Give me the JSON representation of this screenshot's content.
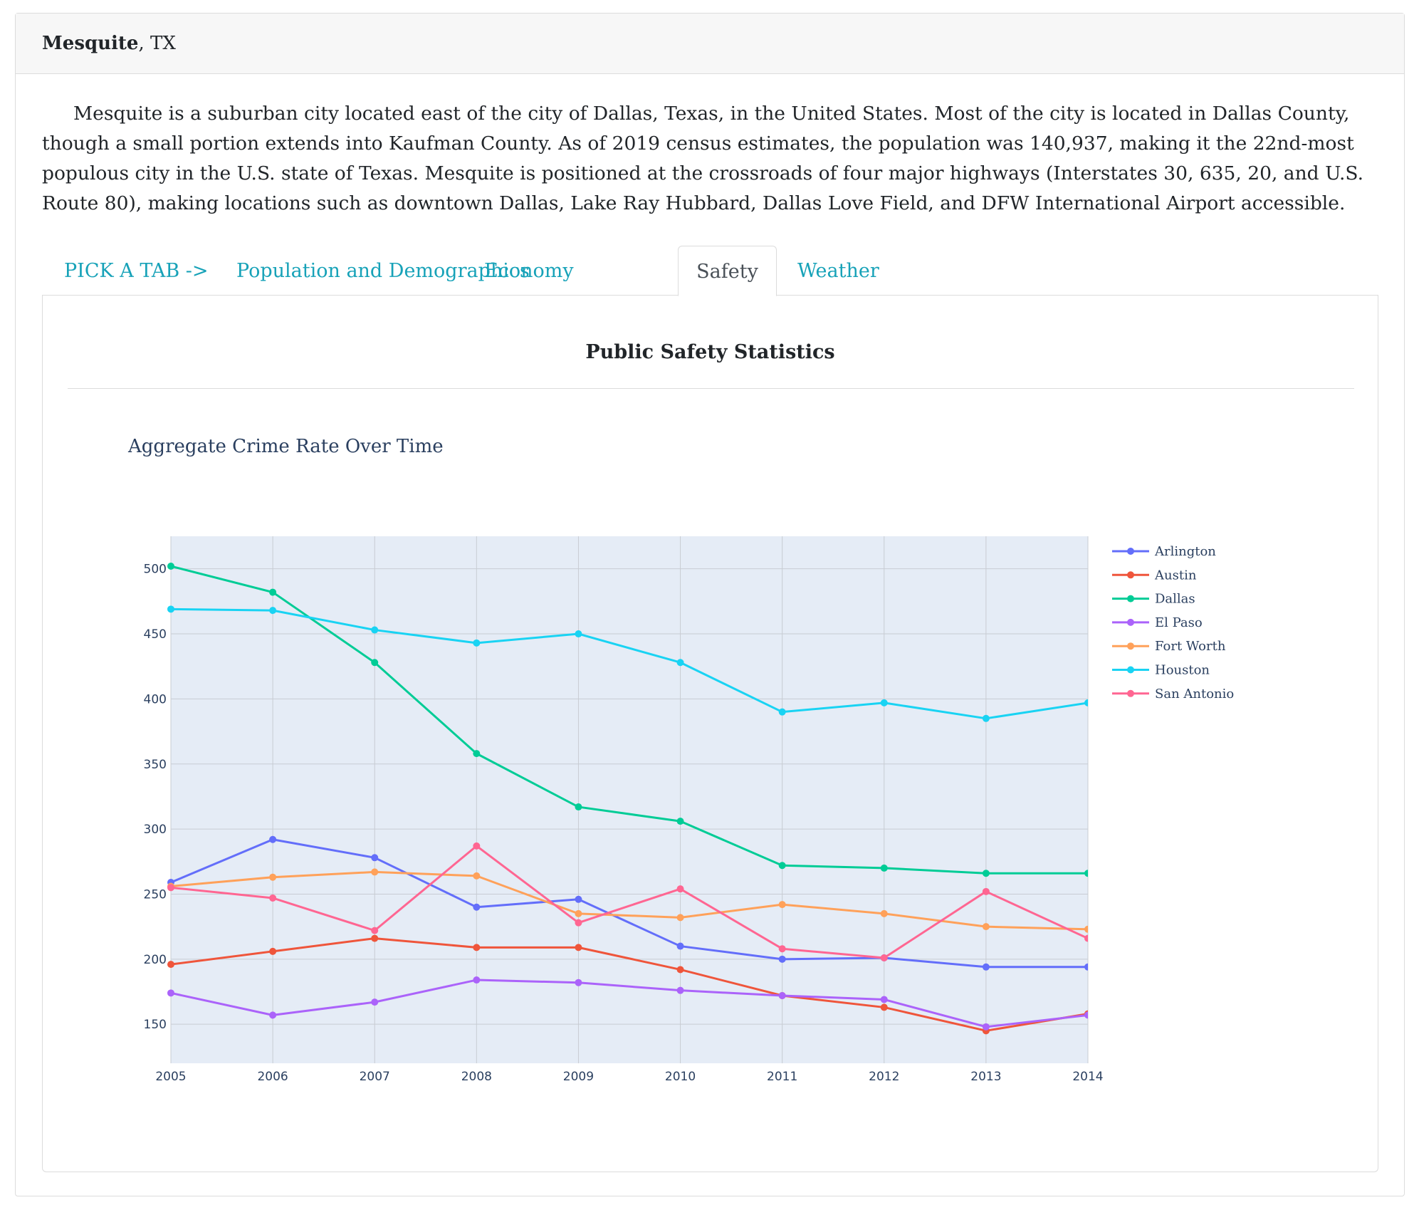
{
  "header": {
    "city": "Mesquite",
    "state_suffix": ", TX"
  },
  "intro": "Mesquite is a suburban city located east of the city of Dallas, Texas, in the United States. Most of the city is located in Dallas County, though a small portion extends into Kaufman County. As of 2019 census estimates, the population was 140,937, making it the 22nd-most populous city in the U.S. state of Texas. Mesquite is positioned at the crossroads of four major highways (Interstates 30, 635, 20, and U.S. Route 80), making locations such as downtown Dallas, Lake Ray Hubbard, Dallas Love Field, and DFW International Airport accessible.",
  "tabs": [
    {
      "label": "PICK A TAB ->"
    },
    {
      "label": "Population and Demographics"
    },
    {
      "label": "Economy"
    },
    {
      "label": "Safety",
      "active": true
    },
    {
      "label": "Weather"
    }
  ],
  "panel": {
    "title": "Public Safety Statistics"
  },
  "colors": {
    "link": "#17a2b8",
    "plot_bg": "#e5ecf6",
    "grid": "#c8ccd3"
  },
  "chart_data": {
    "type": "line",
    "title": "Aggregate Crime Rate Over Time",
    "xlabel": "",
    "ylabel": "",
    "x": [
      2005,
      2006,
      2007,
      2008,
      2009,
      2010,
      2011,
      2012,
      2013,
      2014
    ],
    "xlim": [
      2005,
      2014
    ],
    "ylim": [
      120,
      525
    ],
    "yticks": [
      150,
      200,
      250,
      300,
      350,
      400,
      450,
      500
    ],
    "grid": true,
    "legend": "right",
    "series": [
      {
        "name": "Arlington",
        "color": "#636efa",
        "values": [
          259,
          292,
          278,
          240,
          246,
          210,
          200,
          201,
          194,
          194
        ]
      },
      {
        "name": "Austin",
        "color": "#ef553b",
        "values": [
          196,
          206,
          216,
          209,
          209,
          192,
          172,
          163,
          145,
          158
        ]
      },
      {
        "name": "Dallas",
        "color": "#00cc96",
        "values": [
          502,
          482,
          428,
          358,
          317,
          306,
          272,
          270,
          266,
          266
        ]
      },
      {
        "name": "El Paso",
        "color": "#ab63fa",
        "values": [
          174,
          157,
          167,
          184,
          182,
          176,
          172,
          169,
          148,
          157
        ]
      },
      {
        "name": "Fort Worth",
        "color": "#ffa15a",
        "values": [
          256,
          263,
          267,
          264,
          235,
          232,
          242,
          235,
          225,
          223
        ]
      },
      {
        "name": "Houston",
        "color": "#19d3f3",
        "values": [
          469,
          468,
          453,
          443,
          450,
          428,
          390,
          397,
          385,
          397
        ]
      },
      {
        "name": "San Antonio",
        "color": "#ff6692",
        "values": [
          255,
          247,
          222,
          287,
          228,
          254,
          208,
          201,
          252,
          216
        ]
      }
    ]
  }
}
